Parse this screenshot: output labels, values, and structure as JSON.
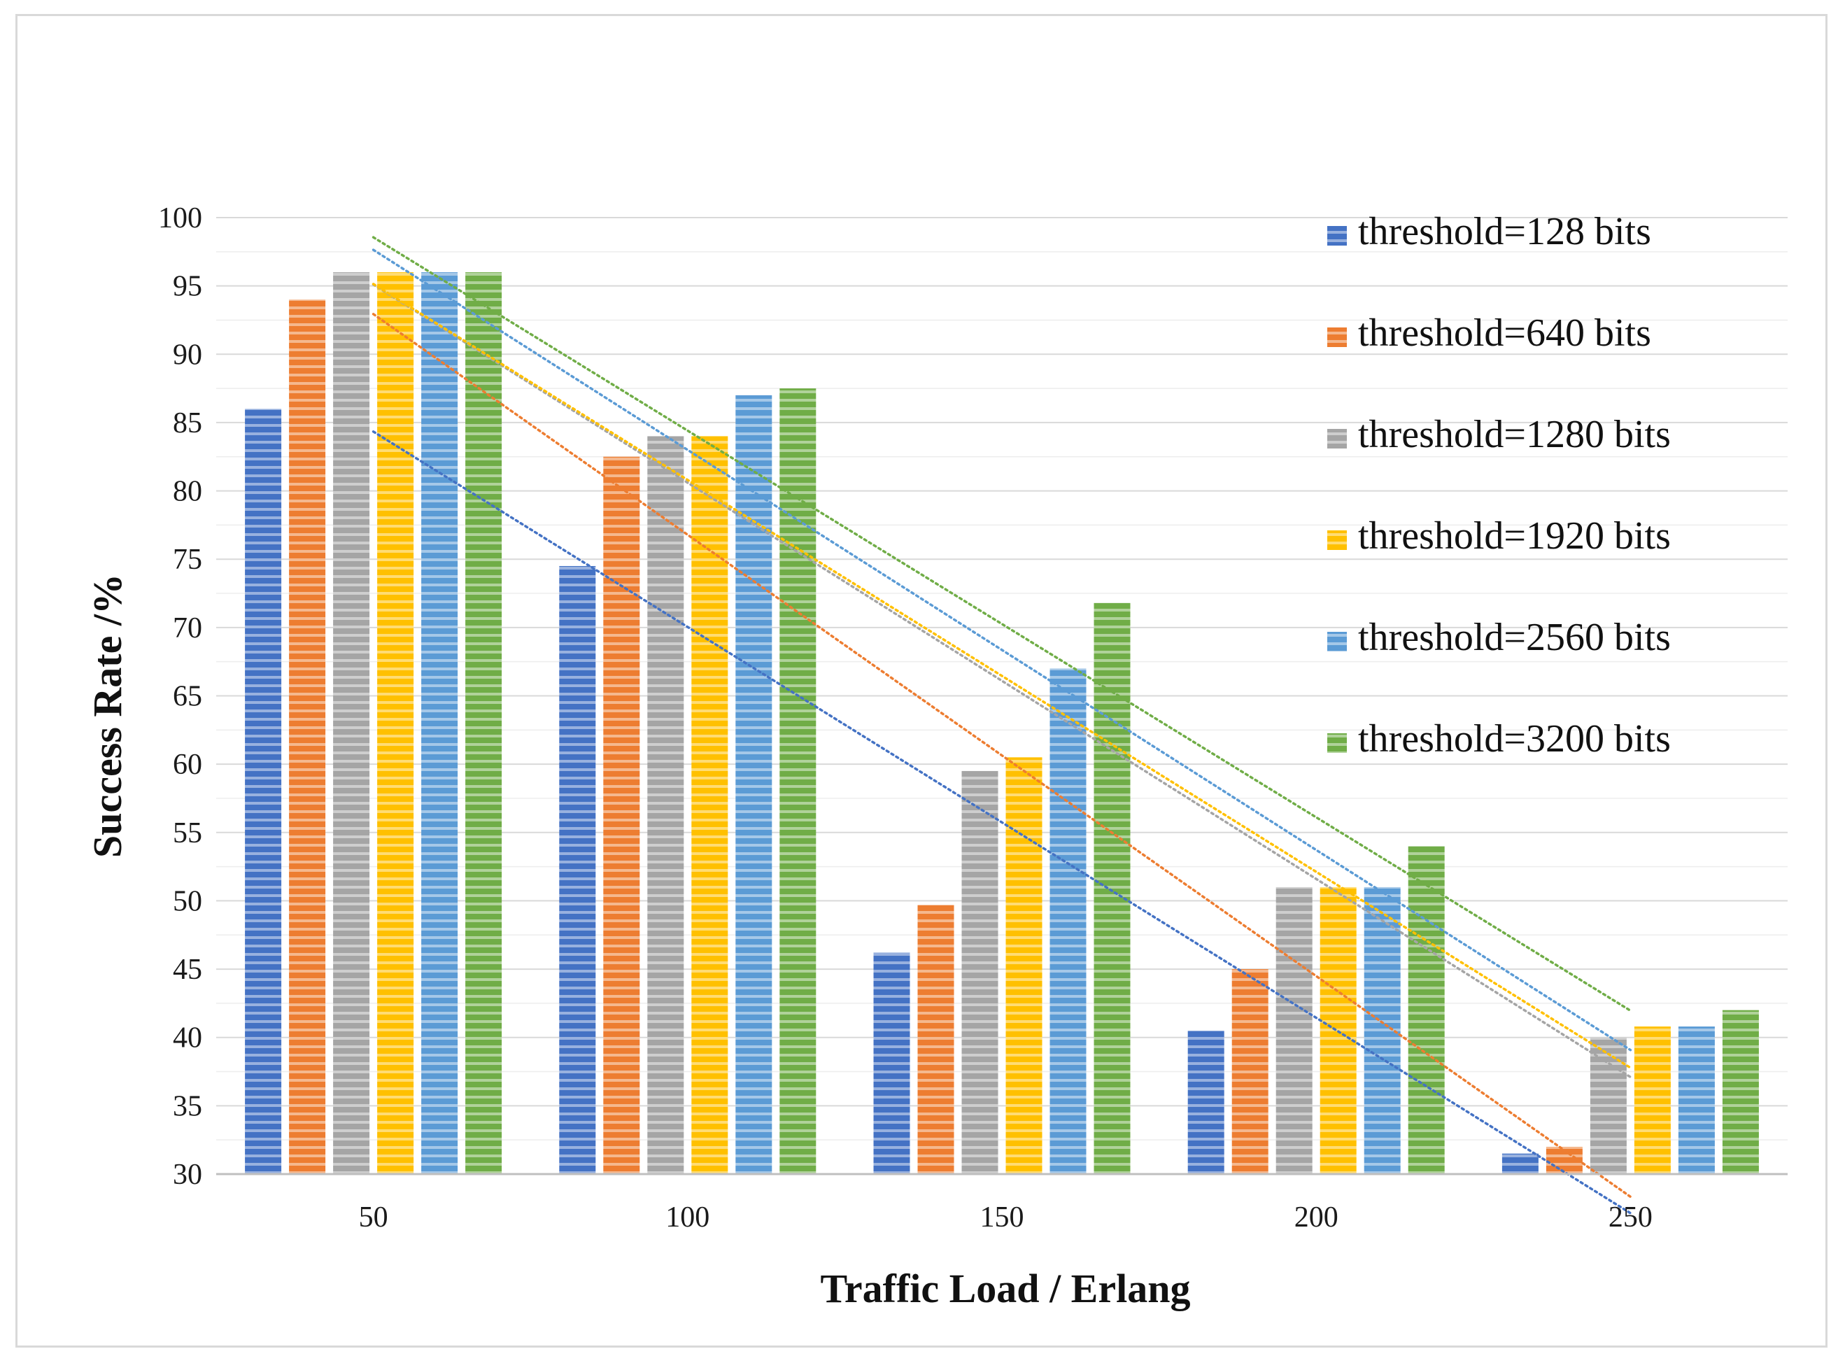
{
  "chart_data": {
    "type": "bar",
    "title": "",
    "xlabel": "Traffic Load / Erlang",
    "ylabel": "Success Rate /%",
    "categories": [
      "50",
      "100",
      "150",
      "200",
      "250"
    ],
    "ylim": [
      30,
      100
    ],
    "yticks": [
      30,
      35,
      40,
      45,
      50,
      55,
      60,
      65,
      70,
      75,
      80,
      85,
      90,
      95,
      100
    ],
    "grid": true,
    "legend_position": "top-right",
    "trendlines": "linear, dotted, one per series",
    "series": [
      {
        "name": "threshold=128 bits",
        "color": "#4472c4",
        "values": [
          86.0,
          74.5,
          46.2,
          40.5,
          31.5
        ]
      },
      {
        "name": "threshold=640 bits",
        "color": "#ed7d31",
        "values": [
          94.0,
          82.5,
          49.7,
          45.0,
          32.0
        ]
      },
      {
        "name": "threshold=1280 bits",
        "color": "#a5a5a5",
        "values": [
          96.0,
          84.0,
          59.5,
          51.0,
          40.0
        ]
      },
      {
        "name": "threshold=1920 bits",
        "color": "#ffc000",
        "values": [
          96.0,
          84.0,
          60.5,
          51.0,
          40.8
        ]
      },
      {
        "name": "threshold=2560 bits",
        "color": "#5b9bd5",
        "values": [
          96.0,
          87.0,
          67.0,
          51.0,
          40.8
        ]
      },
      {
        "name": "threshold=3200 bits",
        "color": "#70ad47",
        "values": [
          96.0,
          87.5,
          71.8,
          54.0,
          42.0
        ]
      }
    ]
  }
}
